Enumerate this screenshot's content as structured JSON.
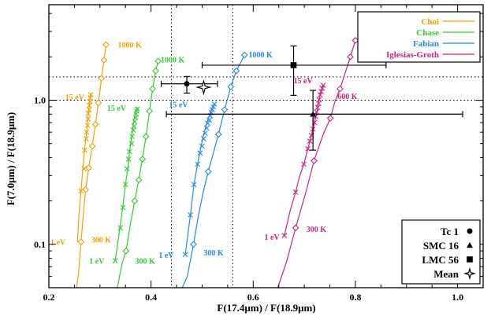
{
  "chart_data": {
    "type": "scatter",
    "xlabel": "F(17.4μm) / F(18.9μm)",
    "ylabel": "F(7.0μm) / F(18.9μm)",
    "xlim": [
      0.2,
      1.05
    ],
    "ylim": [
      0.05,
      4.6
    ],
    "yscale": "log",
    "x_ticks": [
      {
        "value": 0.2,
        "label": "0.2"
      },
      {
        "value": 0.4,
        "label": "0.4"
      },
      {
        "value": 0.6,
        "label": "0.6"
      },
      {
        "value": 0.8,
        "label": "0.8"
      },
      {
        "value": 1.0,
        "label": "1.0"
      }
    ],
    "y_ticks": [
      {
        "value": 0.1,
        "label": "0.1"
      },
      {
        "value": 1.0,
        "label": "1.0"
      }
    ],
    "legend_position": "top-right",
    "series": [
      {
        "name": "Choi",
        "color": "#f5a000",
        "cross_line": [
          [
            0.256,
            0.104
          ],
          [
            0.259,
            0.16
          ],
          [
            0.263,
            0.235
          ],
          [
            0.266,
            0.32
          ],
          [
            0.269,
            0.42
          ],
          [
            0.272,
            0.53
          ],
          [
            0.275,
            0.65
          ],
          [
            0.277,
            0.78
          ],
          [
            0.279,
            0.9
          ],
          [
            0.28,
            1.0
          ],
          [
            0.281,
            1.06
          ],
          [
            0.282,
            1.1
          ],
          [
            0.283,
            1.12
          ]
        ],
        "crosses": [
          [
            0.263,
            0.235
          ],
          [
            0.269,
            0.335
          ],
          [
            0.27,
            0.45
          ],
          [
            0.273,
            0.54
          ],
          [
            0.274,
            0.6
          ],
          [
            0.276,
            0.67
          ],
          [
            0.277,
            0.74
          ],
          [
            0.277,
            0.81
          ],
          [
            0.279,
            0.86
          ],
          [
            0.279,
            0.92
          ],
          [
            0.281,
            0.98
          ],
          [
            0.281,
            1.04
          ],
          [
            0.282,
            1.09
          ]
        ],
        "diamond_line": [
          [
            0.254,
            0.05
          ],
          [
            0.258,
            0.062
          ],
          [
            0.263,
            0.104
          ],
          [
            0.268,
            0.17
          ],
          [
            0.272,
            0.24
          ],
          [
            0.278,
            0.34
          ],
          [
            0.285,
            0.48
          ],
          [
            0.291,
            0.68
          ],
          [
            0.297,
            0.96
          ],
          [
            0.303,
            1.42
          ],
          [
            0.308,
            1.9
          ],
          [
            0.312,
            2.43
          ]
        ],
        "diamonds": [
          [
            0.263,
            0.104
          ],
          [
            0.272,
            0.24
          ],
          [
            0.278,
            0.34
          ],
          [
            0.285,
            0.48
          ],
          [
            0.291,
            0.68
          ],
          [
            0.297,
            0.96
          ],
          [
            0.303,
            1.42
          ],
          [
            0.308,
            1.9
          ],
          [
            0.312,
            2.43
          ]
        ],
        "labels": [
          {
            "text": "15 eV",
            "x": 0.232,
            "y": 1.06
          },
          {
            "text": "1 eV",
            "x": 0.203,
            "y": 0.104
          },
          {
            "text": "300 K",
            "x": 0.283,
            "y": 0.108
          },
          {
            "text": "1000 K",
            "x": 0.335,
            "y": 2.44
          }
        ]
      },
      {
        "name": "Chase",
        "color": "#33cc33",
        "cross_line": [
          [
            0.33,
            0.077
          ],
          [
            0.339,
            0.13
          ],
          [
            0.345,
            0.185
          ],
          [
            0.35,
            0.26
          ],
          [
            0.355,
            0.35
          ],
          [
            0.358,
            0.44
          ],
          [
            0.361,
            0.53
          ],
          [
            0.364,
            0.62
          ],
          [
            0.366,
            0.71
          ],
          [
            0.368,
            0.78
          ],
          [
            0.37,
            0.83
          ],
          [
            0.372,
            0.87
          ],
          [
            0.373,
            0.9
          ]
        ],
        "crosses": [
          [
            0.33,
            0.077
          ],
          [
            0.34,
            0.13
          ],
          [
            0.345,
            0.18
          ],
          [
            0.35,
            0.26
          ],
          [
            0.353,
            0.335
          ],
          [
            0.356,
            0.39
          ],
          [
            0.358,
            0.44
          ],
          [
            0.362,
            0.5
          ],
          [
            0.363,
            0.56
          ],
          [
            0.365,
            0.62
          ],
          [
            0.367,
            0.66
          ],
          [
            0.368,
            0.71
          ],
          [
            0.37,
            0.76
          ],
          [
            0.371,
            0.8
          ],
          [
            0.372,
            0.84
          ],
          [
            0.373,
            0.87
          ]
        ],
        "diamond_line": [
          [
            0.334,
            0.05
          ],
          [
            0.343,
            0.073
          ],
          [
            0.351,
            0.09
          ],
          [
            0.36,
            0.14
          ],
          [
            0.368,
            0.2
          ],
          [
            0.376,
            0.28
          ],
          [
            0.383,
            0.39
          ],
          [
            0.39,
            0.56
          ],
          [
            0.397,
            0.84
          ],
          [
            0.403,
            1.2
          ],
          [
            0.409,
            1.6
          ],
          [
            0.414,
            1.87
          ]
        ],
        "diamonds": [
          [
            0.351,
            0.09
          ],
          [
            0.368,
            0.2
          ],
          [
            0.376,
            0.28
          ],
          [
            0.383,
            0.39
          ],
          [
            0.39,
            0.56
          ],
          [
            0.397,
            0.84
          ],
          [
            0.403,
            1.2
          ],
          [
            0.409,
            1.6
          ],
          [
            0.414,
            1.87
          ]
        ],
        "labels": [
          {
            "text": "15 eV",
            "x": 0.314,
            "y": 0.89
          },
          {
            "text": "1 eV",
            "x": 0.279,
            "y": 0.077
          },
          {
            "text": "300 K",
            "x": 0.369,
            "y": 0.077
          },
          {
            "text": "1000 K",
            "x": 0.419,
            "y": 1.92
          }
        ]
      },
      {
        "name": "Fabian",
        "color": "#2288ee",
        "cross_line": [
          [
            0.467,
            0.085
          ],
          [
            0.477,
            0.16
          ],
          [
            0.484,
            0.26
          ],
          [
            0.491,
            0.36
          ],
          [
            0.497,
            0.46
          ],
          [
            0.502,
            0.56
          ],
          [
            0.507,
            0.65
          ],
          [
            0.511,
            0.73
          ],
          [
            0.515,
            0.8
          ],
          [
            0.518,
            0.86
          ],
          [
            0.521,
            0.91
          ],
          [
            0.524,
            0.95
          ]
        ],
        "crosses": [
          [
            0.467,
            0.085
          ],
          [
            0.477,
            0.16
          ],
          [
            0.484,
            0.26
          ],
          [
            0.491,
            0.36
          ],
          [
            0.496,
            0.43
          ],
          [
            0.5,
            0.48
          ],
          [
            0.503,
            0.54
          ],
          [
            0.506,
            0.59
          ],
          [
            0.509,
            0.64
          ],
          [
            0.511,
            0.69
          ],
          [
            0.514,
            0.73
          ],
          [
            0.516,
            0.78
          ],
          [
            0.518,
            0.82
          ],
          [
            0.52,
            0.86
          ],
          [
            0.522,
            0.9
          ],
          [
            0.524,
            0.94
          ]
        ],
        "diamond_line": [
          [
            0.461,
            0.05
          ],
          [
            0.471,
            0.06
          ],
          [
            0.483,
            0.1
          ],
          [
            0.493,
            0.16
          ],
          [
            0.502,
            0.23
          ],
          [
            0.512,
            0.32
          ],
          [
            0.522,
            0.43
          ],
          [
            0.532,
            0.58
          ],
          [
            0.544,
            0.86
          ],
          [
            0.556,
            1.24
          ],
          [
            0.567,
            1.6
          ],
          [
            0.583,
            2.06
          ]
        ],
        "diamonds": [
          [
            0.483,
            0.1
          ],
          [
            0.512,
            0.32
          ],
          [
            0.532,
            0.58
          ],
          [
            0.544,
            0.86
          ],
          [
            0.556,
            1.24
          ],
          [
            0.567,
            1.6
          ],
          [
            0.583,
            2.06
          ]
        ],
        "labels": [
          {
            "text": "15 eV",
            "x": 0.435,
            "y": 0.94
          },
          {
            "text": "1 eV",
            "x": 0.415,
            "y": 0.085
          },
          {
            "text": "300 K",
            "x": 0.503,
            "y": 0.088
          },
          {
            "text": "1000 K",
            "x": 0.591,
            "y": 2.08
          }
        ]
      },
      {
        "name": "Iglesias-Groth",
        "color": "#d4208a",
        "cross_line": [
          [
            0.661,
            0.115
          ],
          [
            0.672,
            0.17
          ],
          [
            0.683,
            0.23
          ],
          [
            0.69,
            0.29
          ],
          [
            0.699,
            0.36
          ],
          [
            0.707,
            0.46
          ],
          [
            0.714,
            0.57
          ],
          [
            0.72,
            0.7
          ],
          [
            0.725,
            0.85
          ],
          [
            0.728,
            0.97
          ],
          [
            0.731,
            1.09
          ],
          [
            0.734,
            1.19
          ],
          [
            0.737,
            1.27
          ]
        ],
        "crosses": [
          [
            0.661,
            0.115
          ],
          [
            0.683,
            0.23
          ],
          [
            0.699,
            0.36
          ],
          [
            0.707,
            0.46
          ],
          [
            0.711,
            0.52
          ],
          [
            0.714,
            0.57
          ],
          [
            0.717,
            0.63
          ],
          [
            0.72,
            0.7
          ],
          [
            0.722,
            0.77
          ],
          [
            0.724,
            0.83
          ],
          [
            0.726,
            0.89
          ],
          [
            0.728,
            0.95
          ],
          [
            0.729,
            1.01
          ],
          [
            0.731,
            1.09
          ],
          [
            0.733,
            1.15
          ],
          [
            0.735,
            1.21
          ],
          [
            0.737,
            1.27
          ]
        ],
        "diamond_line": [
          [
            0.648,
            0.05
          ],
          [
            0.665,
            0.075
          ],
          [
            0.683,
            0.13
          ],
          [
            0.703,
            0.23
          ],
          [
            0.719,
            0.38
          ],
          [
            0.737,
            0.58
          ],
          [
            0.751,
            0.75
          ],
          [
            0.76,
            0.98
          ],
          [
            0.77,
            1.2
          ],
          [
            0.778,
            1.47
          ],
          [
            0.79,
            2.0
          ],
          [
            0.8,
            2.6
          ]
        ],
        "diamonds": [
          [
            0.683,
            0.13
          ],
          [
            0.719,
            0.38
          ],
          [
            0.751,
            0.75
          ],
          [
            0.77,
            1.2
          ],
          [
            0.79,
            2.0
          ],
          [
            0.8,
            2.6
          ]
        ],
        "labels": [
          {
            "text": "15 eV",
            "x": 0.679,
            "y": 1.38
          },
          {
            "text": "1 eV",
            "x": 0.622,
            "y": 0.113
          },
          {
            "text": "300 K",
            "x": 0.704,
            "y": 0.128
          },
          {
            "text": "600 K",
            "x": 0.765,
            "y": 1.07
          }
        ]
      }
    ],
    "observations": [
      {
        "name": "Tc 1",
        "marker": "circle",
        "x": 0.47,
        "y": 1.3,
        "xerr": [
          0.42,
          0.53
        ],
        "yerr": [
          1.12,
          1.46
        ]
      },
      {
        "name": "SMC 16",
        "marker": "triangle",
        "x": 0.717,
        "y": 0.8,
        "xerr": [
          0.43,
          1.01
        ],
        "yerr": [
          0.45,
          1.17
        ]
      },
      {
        "name": "LMC 56",
        "marker": "square",
        "x": 0.679,
        "y": 1.75,
        "xerr": [
          0.5,
          0.86
        ],
        "yerr": [
          1.08,
          2.38
        ]
      },
      {
        "name": "Mean",
        "marker": "star",
        "x": 0.503,
        "y": 1.23
      }
    ],
    "reference_lines": {
      "vertical_dotted_x": [
        0.44,
        0.56
      ],
      "horizontal_dotted_y": [
        1.0,
        1.45
      ]
    }
  }
}
